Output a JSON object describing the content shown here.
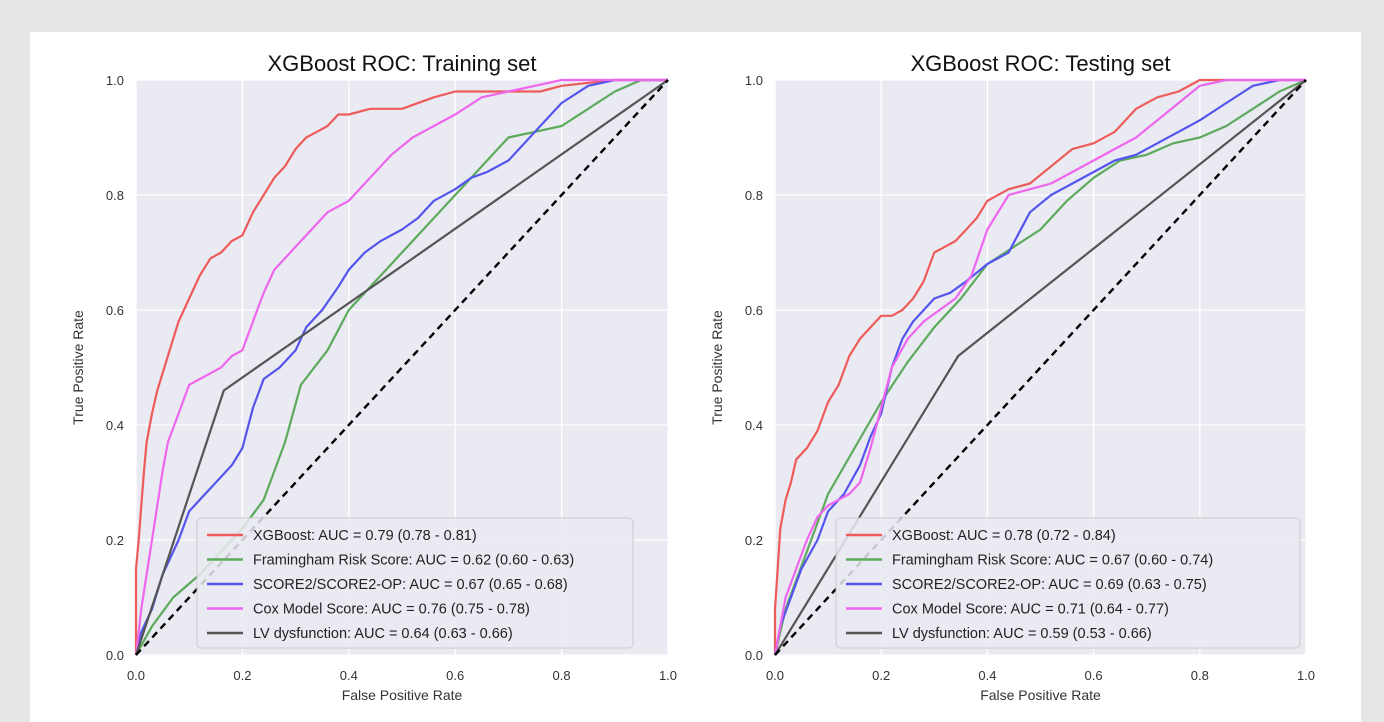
{
  "chart_data": [
    {
      "type": "line",
      "title": "XGBoost ROC: Training set",
      "xlabel": "False Positive Rate",
      "ylabel": "True Positive Rate",
      "xlim": [
        0,
        1
      ],
      "ylim": [
        0,
        1
      ],
      "xticks": [
        "0.0",
        "0.2",
        "0.4",
        "0.6",
        "0.8",
        "1.0"
      ],
      "yticks": [
        "0.0",
        "0.2",
        "0.4",
        "0.6",
        "0.8",
        "1.0"
      ],
      "grid": true,
      "legend_position": "lower-right",
      "reference_line": {
        "style": "dashed",
        "color": "#000000",
        "x": [
          0,
          1
        ],
        "y": [
          0,
          1
        ]
      },
      "series": [
        {
          "name": "XGBoost: AUC = 0.79 (0.78 - 0.81)",
          "color": "#ee5b5b",
          "x": [
            0,
            0,
            0.005,
            0.01,
            0.015,
            0.02,
            0.03,
            0.04,
            0.05,
            0.06,
            0.07,
            0.08,
            0.1,
            0.12,
            0.14,
            0.16,
            0.18,
            0.2,
            0.22,
            0.24,
            0.26,
            0.28,
            0.3,
            0.32,
            0.34,
            0.36,
            0.38,
            0.4,
            0.44,
            0.5,
            0.56,
            0.6,
            0.64,
            0.7,
            0.76,
            0.8,
            0.9,
            1
          ],
          "y": [
            0,
            0.15,
            0.2,
            0.26,
            0.32,
            0.37,
            0.42,
            0.46,
            0.49,
            0.52,
            0.55,
            0.58,
            0.62,
            0.66,
            0.69,
            0.7,
            0.72,
            0.73,
            0.77,
            0.8,
            0.83,
            0.85,
            0.88,
            0.9,
            0.91,
            0.92,
            0.94,
            0.94,
            0.95,
            0.95,
            0.97,
            0.98,
            0.98,
            0.98,
            0.98,
            0.99,
            1,
            1
          ]
        },
        {
          "name": "Framingham Risk Score: AUC = 0.62 (0.60 - 0.63)",
          "color": "#5daa5d",
          "x": [
            0,
            0.03,
            0.07,
            0.12,
            0.16,
            0.2,
            0.24,
            0.28,
            0.31,
            0.36,
            0.4,
            0.45,
            0.5,
            0.55,
            0.6,
            0.65,
            0.7,
            0.75,
            0.8,
            0.85,
            0.9,
            0.95,
            1
          ],
          "y": [
            0,
            0.05,
            0.1,
            0.14,
            0.18,
            0.22,
            0.27,
            0.37,
            0.47,
            0.53,
            0.6,
            0.65,
            0.7,
            0.75,
            0.8,
            0.85,
            0.9,
            0.91,
            0.92,
            0.95,
            0.98,
            1,
            1
          ]
        },
        {
          "name": "SCORE2/SCORE2-OP: AUC = 0.67 (0.65 - 0.68)",
          "color": "#5555ee",
          "x": [
            0,
            0.01,
            0.03,
            0.05,
            0.08,
            0.1,
            0.12,
            0.14,
            0.16,
            0.18,
            0.2,
            0.22,
            0.24,
            0.27,
            0.3,
            0.32,
            0.35,
            0.38,
            0.4,
            0.43,
            0.46,
            0.5,
            0.53,
            0.56,
            0.6,
            0.63,
            0.66,
            0.7,
            0.73,
            0.76,
            0.8,
            0.85,
            0.9,
            0.95,
            1
          ],
          "y": [
            0,
            0.04,
            0.08,
            0.14,
            0.2,
            0.25,
            0.27,
            0.29,
            0.31,
            0.33,
            0.36,
            0.43,
            0.48,
            0.5,
            0.53,
            0.57,
            0.6,
            0.64,
            0.67,
            0.7,
            0.72,
            0.74,
            0.76,
            0.79,
            0.81,
            0.83,
            0.84,
            0.86,
            0.89,
            0.92,
            0.96,
            0.99,
            1,
            1,
            1
          ]
        },
        {
          "name": "Cox Model Score: AUC = 0.76 (0.75 - 0.78)",
          "color": "#ee66ee",
          "x": [
            0,
            0.005,
            0.01,
            0.02,
            0.03,
            0.04,
            0.05,
            0.06,
            0.08,
            0.1,
            0.12,
            0.14,
            0.16,
            0.18,
            0.2,
            0.22,
            0.24,
            0.26,
            0.28,
            0.3,
            0.33,
            0.36,
            0.4,
            0.44,
            0.48,
            0.52,
            0.56,
            0.6,
            0.65,
            0.7,
            0.75,
            0.8,
            0.9,
            1
          ],
          "y": [
            0,
            0.04,
            0.08,
            0.14,
            0.2,
            0.26,
            0.32,
            0.37,
            0.42,
            0.47,
            0.48,
            0.49,
            0.5,
            0.52,
            0.53,
            0.58,
            0.63,
            0.67,
            0.69,
            0.71,
            0.74,
            0.77,
            0.79,
            0.83,
            0.87,
            0.9,
            0.92,
            0.94,
            0.97,
            0.98,
            0.99,
            1,
            1,
            1
          ]
        },
        {
          "name": "LV dysfunction: AUC = 0.64 (0.63 - 0.66)",
          "color": "#555555",
          "x": [
            0,
            0.165,
            1
          ],
          "y": [
            0,
            0.46,
            1
          ]
        }
      ]
    },
    {
      "type": "line",
      "title": "XGBoost ROC: Testing set",
      "xlabel": "False Positive Rate",
      "ylabel": "True Positive Rate",
      "xlim": [
        0,
        1
      ],
      "ylim": [
        0,
        1
      ],
      "xticks": [
        "0.0",
        "0.2",
        "0.4",
        "0.6",
        "0.8",
        "1.0"
      ],
      "yticks": [
        "0.0",
        "0.2",
        "0.4",
        "0.6",
        "0.8",
        "1.0"
      ],
      "grid": true,
      "legend_position": "lower-right",
      "reference_line": {
        "style": "dashed",
        "color": "#000000",
        "x": [
          0,
          1
        ],
        "y": [
          0,
          1
        ]
      },
      "series": [
        {
          "name": "XGBoost: AUC = 0.78 (0.72 - 0.84)",
          "color": "#ee5b5b",
          "x": [
            0,
            0,
            0.005,
            0.01,
            0.02,
            0.03,
            0.04,
            0.06,
            0.08,
            0.1,
            0.12,
            0.14,
            0.16,
            0.18,
            0.2,
            0.22,
            0.24,
            0.26,
            0.28,
            0.3,
            0.32,
            0.34,
            0.36,
            0.38,
            0.4,
            0.44,
            0.48,
            0.52,
            0.56,
            0.6,
            0.64,
            0.68,
            0.72,
            0.76,
            0.8,
            0.9,
            1
          ],
          "y": [
            0,
            0.08,
            0.15,
            0.22,
            0.27,
            0.3,
            0.34,
            0.36,
            0.39,
            0.44,
            0.47,
            0.52,
            0.55,
            0.57,
            0.59,
            0.59,
            0.6,
            0.62,
            0.65,
            0.7,
            0.71,
            0.72,
            0.74,
            0.76,
            0.79,
            0.81,
            0.82,
            0.85,
            0.88,
            0.89,
            0.91,
            0.95,
            0.97,
            0.98,
            1,
            1,
            1
          ]
        },
        {
          "name": "Framingham Risk Score: AUC = 0.67 (0.60 - 0.74)",
          "color": "#5daa5d",
          "x": [
            0,
            0.02,
            0.06,
            0.1,
            0.15,
            0.2,
            0.25,
            0.3,
            0.35,
            0.4,
            0.45,
            0.5,
            0.55,
            0.6,
            0.65,
            0.7,
            0.75,
            0.8,
            0.85,
            0.9,
            0.95,
            1
          ],
          "y": [
            0,
            0.08,
            0.18,
            0.28,
            0.36,
            0.44,
            0.51,
            0.57,
            0.62,
            0.68,
            0.71,
            0.74,
            0.79,
            0.83,
            0.86,
            0.87,
            0.89,
            0.9,
            0.92,
            0.95,
            0.98,
            1
          ]
        },
        {
          "name": "SCORE2/SCORE2-OP: AUC = 0.69 (0.63 - 0.75)",
          "color": "#5555ee",
          "x": [
            0,
            0.01,
            0.03,
            0.05,
            0.08,
            0.1,
            0.13,
            0.16,
            0.18,
            0.2,
            0.22,
            0.24,
            0.26,
            0.28,
            0.3,
            0.33,
            0.36,
            0.4,
            0.44,
            0.48,
            0.52,
            0.56,
            0.6,
            0.64,
            0.68,
            0.72,
            0.76,
            0.8,
            0.85,
            0.9,
            0.95,
            1
          ],
          "y": [
            0,
            0.05,
            0.1,
            0.15,
            0.2,
            0.25,
            0.28,
            0.33,
            0.38,
            0.42,
            0.5,
            0.55,
            0.58,
            0.6,
            0.62,
            0.63,
            0.65,
            0.68,
            0.7,
            0.77,
            0.8,
            0.82,
            0.84,
            0.86,
            0.87,
            0.89,
            0.91,
            0.93,
            0.96,
            0.99,
            1,
            1
          ]
        },
        {
          "name": "Cox Model Score: AUC = 0.71 (0.64 - 0.77)",
          "color": "#ee66ee",
          "x": [
            0,
            0.01,
            0.02,
            0.04,
            0.06,
            0.08,
            0.1,
            0.12,
            0.14,
            0.16,
            0.18,
            0.2,
            0.22,
            0.25,
            0.28,
            0.31,
            0.34,
            0.37,
            0.4,
            0.44,
            0.48,
            0.52,
            0.56,
            0.6,
            0.64,
            0.68,
            0.72,
            0.76,
            0.8,
            0.85,
            0.9,
            1
          ],
          "y": [
            0,
            0.05,
            0.1,
            0.15,
            0.2,
            0.24,
            0.26,
            0.27,
            0.28,
            0.3,
            0.36,
            0.43,
            0.5,
            0.55,
            0.58,
            0.6,
            0.62,
            0.66,
            0.74,
            0.8,
            0.81,
            0.82,
            0.84,
            0.86,
            0.88,
            0.9,
            0.93,
            0.96,
            0.99,
            1,
            1,
            1
          ]
        },
        {
          "name": "LV dysfunction: AUC = 0.59 (0.53 - 0.66)",
          "color": "#555555",
          "x": [
            0,
            0.345,
            1
          ],
          "y": [
            0,
            0.52,
            1
          ]
        }
      ]
    }
  ]
}
